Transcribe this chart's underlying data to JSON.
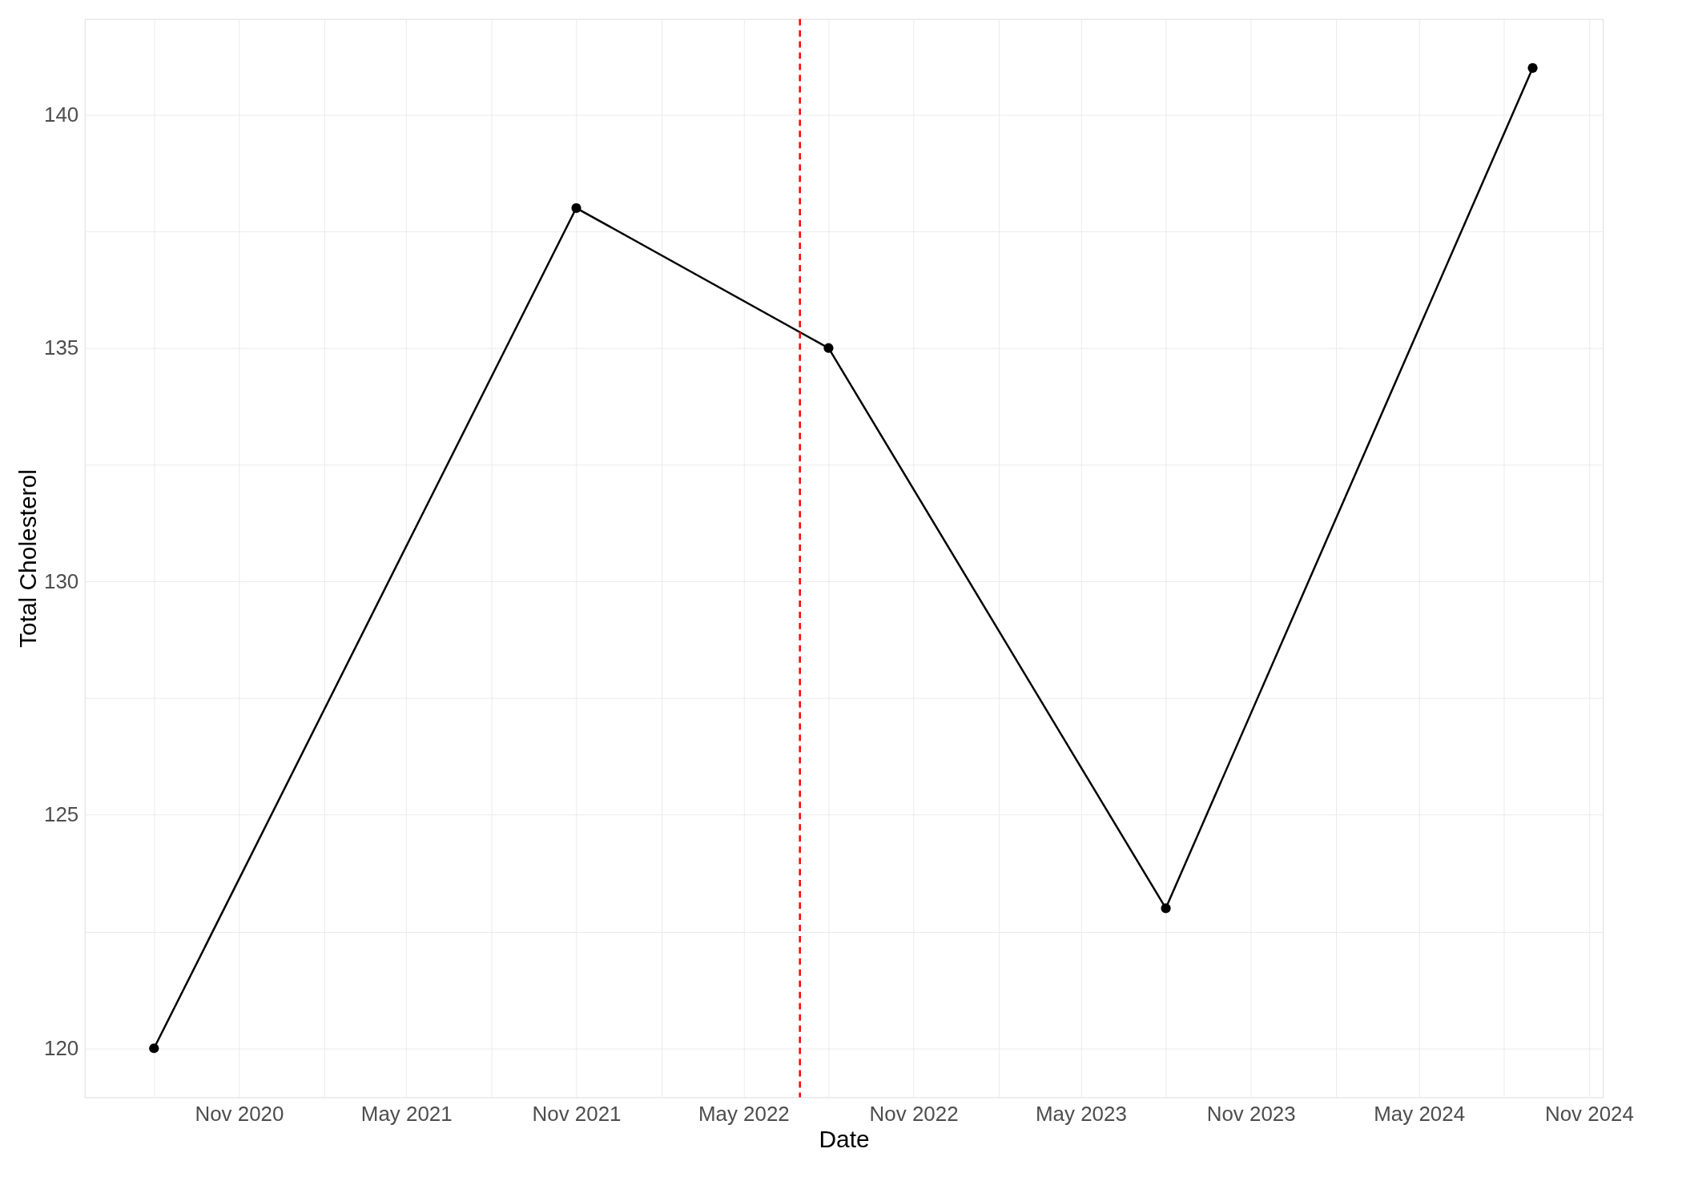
{
  "chart_data": {
    "type": "line",
    "xlabel": "Date",
    "ylabel": "Total Cholesterol",
    "x": [
      "2020-08-01",
      "2021-11-01",
      "2022-08-01",
      "2023-08-01",
      "2024-09-01"
    ],
    "series": [
      {
        "color": "#000000",
        "values": [
          120,
          138,
          135,
          123,
          141
        ]
      }
    ],
    "marker": "circle",
    "line_style": "solid",
    "xlim": [
      "2020-05-18",
      "2024-11-16"
    ],
    "xticks": [
      {
        "value": "2020-08-01",
        "label": null
      },
      {
        "value": "2020-11-01",
        "label": "Nov 2020"
      },
      {
        "value": "2021-02-01",
        "label": null
      },
      {
        "value": "2021-05-01",
        "label": "May 2021"
      },
      {
        "value": "2021-08-01",
        "label": null
      },
      {
        "value": "2021-11-01",
        "label": "Nov 2021"
      },
      {
        "value": "2022-02-01",
        "label": null
      },
      {
        "value": "2022-05-01",
        "label": "May 2022"
      },
      {
        "value": "2022-08-01",
        "label": null
      },
      {
        "value": "2022-11-01",
        "label": "Nov 2022"
      },
      {
        "value": "2023-02-01",
        "label": null
      },
      {
        "value": "2023-05-01",
        "label": "May 2023"
      },
      {
        "value": "2023-08-01",
        "label": null
      },
      {
        "value": "2023-11-01",
        "label": "Nov 2023"
      },
      {
        "value": "2024-02-01",
        "label": null
      },
      {
        "value": "2024-05-01",
        "label": "May 2024"
      },
      {
        "value": "2024-08-01",
        "label": null
      },
      {
        "value": "2024-11-01",
        "label": "Nov 2024"
      }
    ],
    "ylim": [
      118.95,
      142.05
    ],
    "yticks": [
      120,
      {
        "value": 122.5,
        "label": null
      },
      125,
      {
        "value": 127.5,
        "label": null
      },
      130,
      {
        "value": 132.5,
        "label": null
      },
      135,
      {
        "value": 137.5,
        "label": null
      },
      140
    ],
    "grid": true,
    "legend": false,
    "ref_lines": [
      {
        "axis": "x",
        "value": "2022-07-01",
        "label": null,
        "color": "#ff0000",
        "line_style": "dashed"
      }
    ]
  }
}
